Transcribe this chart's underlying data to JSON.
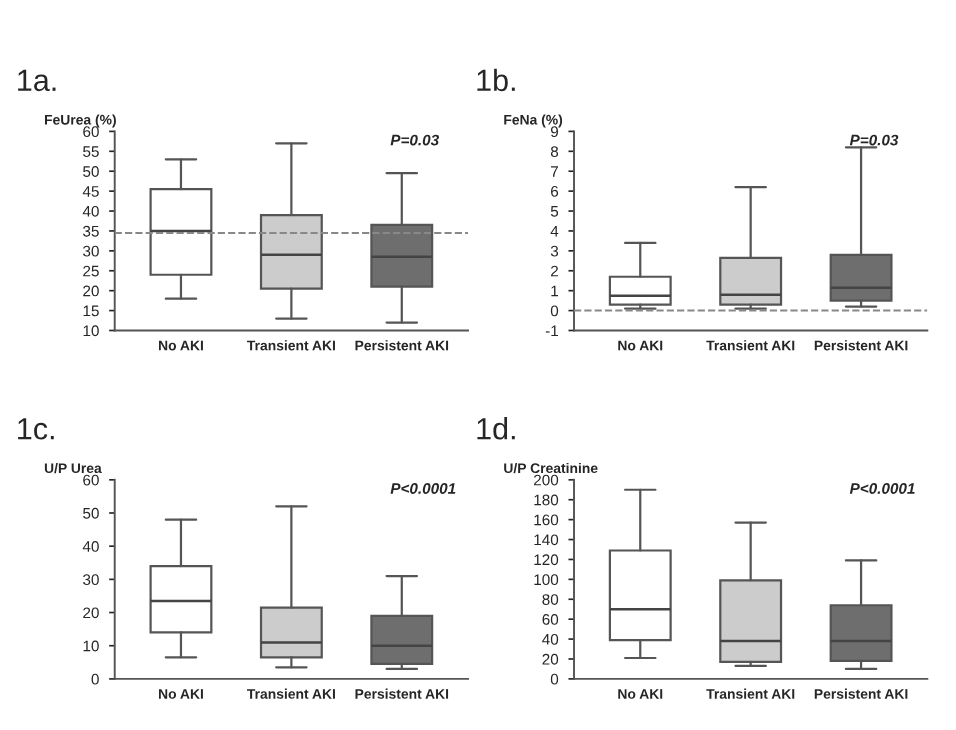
{
  "chart_data": [
    {
      "type": "box",
      "title": "1a.",
      "ylabel": "FeUrea (%)",
      "categories": [
        "No AKI",
        "Transient AKI",
        "Persistent AKI"
      ],
      "colors": [
        "#ffffff",
        "#cccccc",
        "#6e6e6e"
      ],
      "boxes": [
        {
          "low": 18,
          "q1": 24,
          "median": 35,
          "q3": 45.5,
          "high": 53
        },
        {
          "low": 13,
          "q1": 20.5,
          "median": 29,
          "q3": 39,
          "high": 57
        },
        {
          "low": 12,
          "q1": 21,
          "median": 28.5,
          "q3": 36.5,
          "high": 49.5
        }
      ],
      "ylim": [
        10,
        60
      ],
      "yticks": [
        10,
        15,
        20,
        25,
        30,
        35,
        40,
        45,
        50,
        55,
        60
      ],
      "ref_lines": [
        {
          "axis": "y",
          "value": 34.5,
          "line_style": "dashed",
          "color": "#888888"
        }
      ],
      "annotations": [
        "P=0.03"
      ]
    },
    {
      "type": "box",
      "title": "1b.",
      "ylabel": "FeNa (%)",
      "categories": [
        "No AKI",
        "Transient AKI",
        "Persistent AKI"
      ],
      "colors": [
        "#ffffff",
        "#cccccc",
        "#6e6e6e"
      ],
      "boxes": [
        {
          "low": 0.1,
          "q1": 0.3,
          "median": 0.75,
          "q3": 1.7,
          "high": 3.4
        },
        {
          "low": 0.1,
          "q1": 0.3,
          "median": 0.8,
          "q3": 2.65,
          "high": 6.2
        },
        {
          "low": 0.2,
          "q1": 0.5,
          "median": 1.15,
          "q3": 2.8,
          "high": 8.2
        }
      ],
      "ylim": [
        -1,
        9
      ],
      "yticks": [
        -1,
        0,
        1,
        2,
        3,
        4,
        5,
        6,
        7,
        8,
        9
      ],
      "ref_lines": [
        {
          "axis": "y",
          "value": 0,
          "line_style": "dashed",
          "color": "#888888"
        }
      ],
      "annotations": [
        "P=0.03"
      ]
    },
    {
      "type": "box",
      "title": "1c.",
      "ylabel": "U/P Urea",
      "categories": [
        "No AKI",
        "Transient AKI",
        "Persistent AKI"
      ],
      "colors": [
        "#ffffff",
        "#cccccc",
        "#6e6e6e"
      ],
      "boxes": [
        {
          "low": 6.5,
          "q1": 14,
          "median": 23.5,
          "q3": 34,
          "high": 48
        },
        {
          "low": 3.5,
          "q1": 6.5,
          "median": 11,
          "q3": 21.5,
          "high": 52
        },
        {
          "low": 3,
          "q1": 4.5,
          "median": 10,
          "q3": 19,
          "high": 31
        }
      ],
      "ylim": [
        0,
        60
      ],
      "yticks": [
        0,
        10,
        20,
        30,
        40,
        50,
        60
      ],
      "annotations": [
        "P<0.0001"
      ]
    },
    {
      "type": "box",
      "title": "1d.",
      "ylabel": "U/P Creatinine",
      "categories": [
        "No AKI",
        "Transient AKI",
        "Persistent AKI"
      ],
      "colors": [
        "#ffffff",
        "#cccccc",
        "#6e6e6e"
      ],
      "boxes": [
        {
          "low": 21,
          "q1": 39,
          "median": 70,
          "q3": 129,
          "high": 190
        },
        {
          "low": 13,
          "q1": 17,
          "median": 38,
          "q3": 99,
          "high": 157
        },
        {
          "low": 10,
          "q1": 18,
          "median": 38,
          "q3": 74,
          "high": 119
        }
      ],
      "ylim": [
        0,
        200
      ],
      "yticks": [
        0,
        20,
        40,
        60,
        80,
        100,
        120,
        140,
        160,
        180,
        200
      ],
      "annotations": [
        "P<0.0001"
      ]
    }
  ]
}
